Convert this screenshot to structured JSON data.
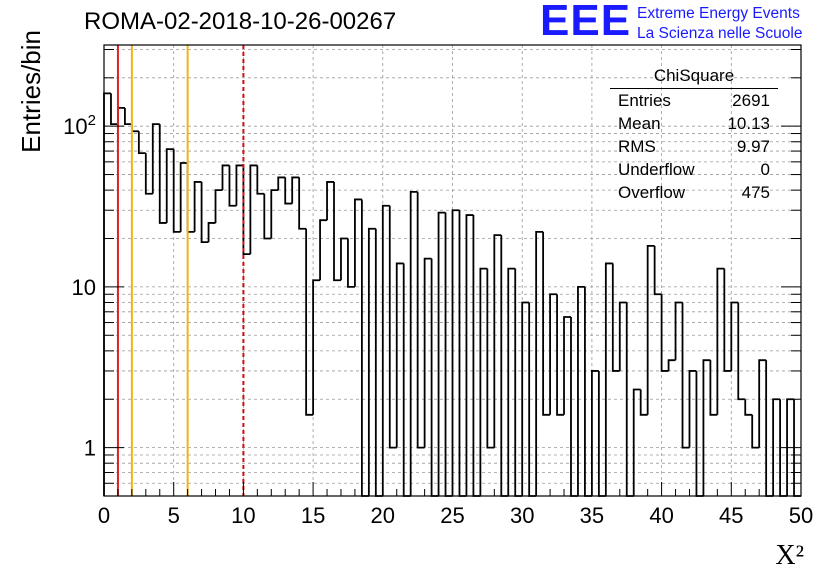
{
  "title": "ROMA-02-2018-10-26-00267",
  "logo": {
    "mark": "EEE",
    "line1": "Extreme Energy Events",
    "line2": "La Scienza nelle Scuole"
  },
  "stats": {
    "title": "ChiSquare",
    "rows": [
      {
        "label": "Entries",
        "value": "2691"
      },
      {
        "label": "Mean",
        "value": "10.13"
      },
      {
        "label": "RMS",
        "value": "9.97"
      },
      {
        "label": "Underflow",
        "value": "0"
      },
      {
        "label": "Overflow",
        "value": "475"
      }
    ]
  },
  "chart_data": {
    "type": "histogram",
    "xlabel": "X²",
    "ylabel": "Entries/bin",
    "xlim": [
      0,
      50
    ],
    "ylim": [
      0.5,
      320
    ],
    "log_y": true,
    "grid": true,
    "bin_width": 0.5,
    "x_ticks": [
      0,
      5,
      10,
      15,
      20,
      25,
      30,
      35,
      40,
      45,
      50
    ],
    "y_tick_labels": [
      {
        "value": 1,
        "label": "1"
      },
      {
        "value": 10,
        "label": "10"
      },
      {
        "value": 100,
        "label": "10^2"
      }
    ],
    "values": [
      160,
      103,
      130,
      103,
      93,
      68,
      38,
      103,
      25,
      72,
      22,
      59,
      22,
      45,
      19,
      25,
      40,
      57,
      32,
      57,
      16,
      57,
      38,
      20,
      40,
      48,
      33,
      48,
      23,
      1.6,
      11,
      26,
      45,
      11,
      20,
      10,
      35,
      0,
      23,
      0,
      32,
      1,
      14,
      0,
      39,
      1,
      15,
      0,
      29,
      0,
      30,
      0,
      28,
      0,
      13,
      1,
      21,
      0,
      13,
      0,
      8,
      0,
      22,
      1.6,
      9,
      1.6,
      6.5,
      0,
      10,
      0,
      3,
      0,
      14,
      3,
      8,
      0,
      2.3,
      1.6,
      18,
      9,
      3,
      3.5,
      8,
      1,
      3,
      0,
      3.5,
      1.6,
      13,
      3,
      8,
      2,
      1.6,
      1,
      3.5,
      0,
      2,
      0,
      2,
      0
    ],
    "vertical_lines": [
      {
        "x": 1,
        "color": "#e02020",
        "style": "solid"
      },
      {
        "x": 2,
        "color": "#f2b21b",
        "style": "solid"
      },
      {
        "x": 6,
        "color": "#f2b21b",
        "style": "solid"
      },
      {
        "x": 10,
        "color": "#d01010",
        "style": "dashed"
      }
    ]
  }
}
